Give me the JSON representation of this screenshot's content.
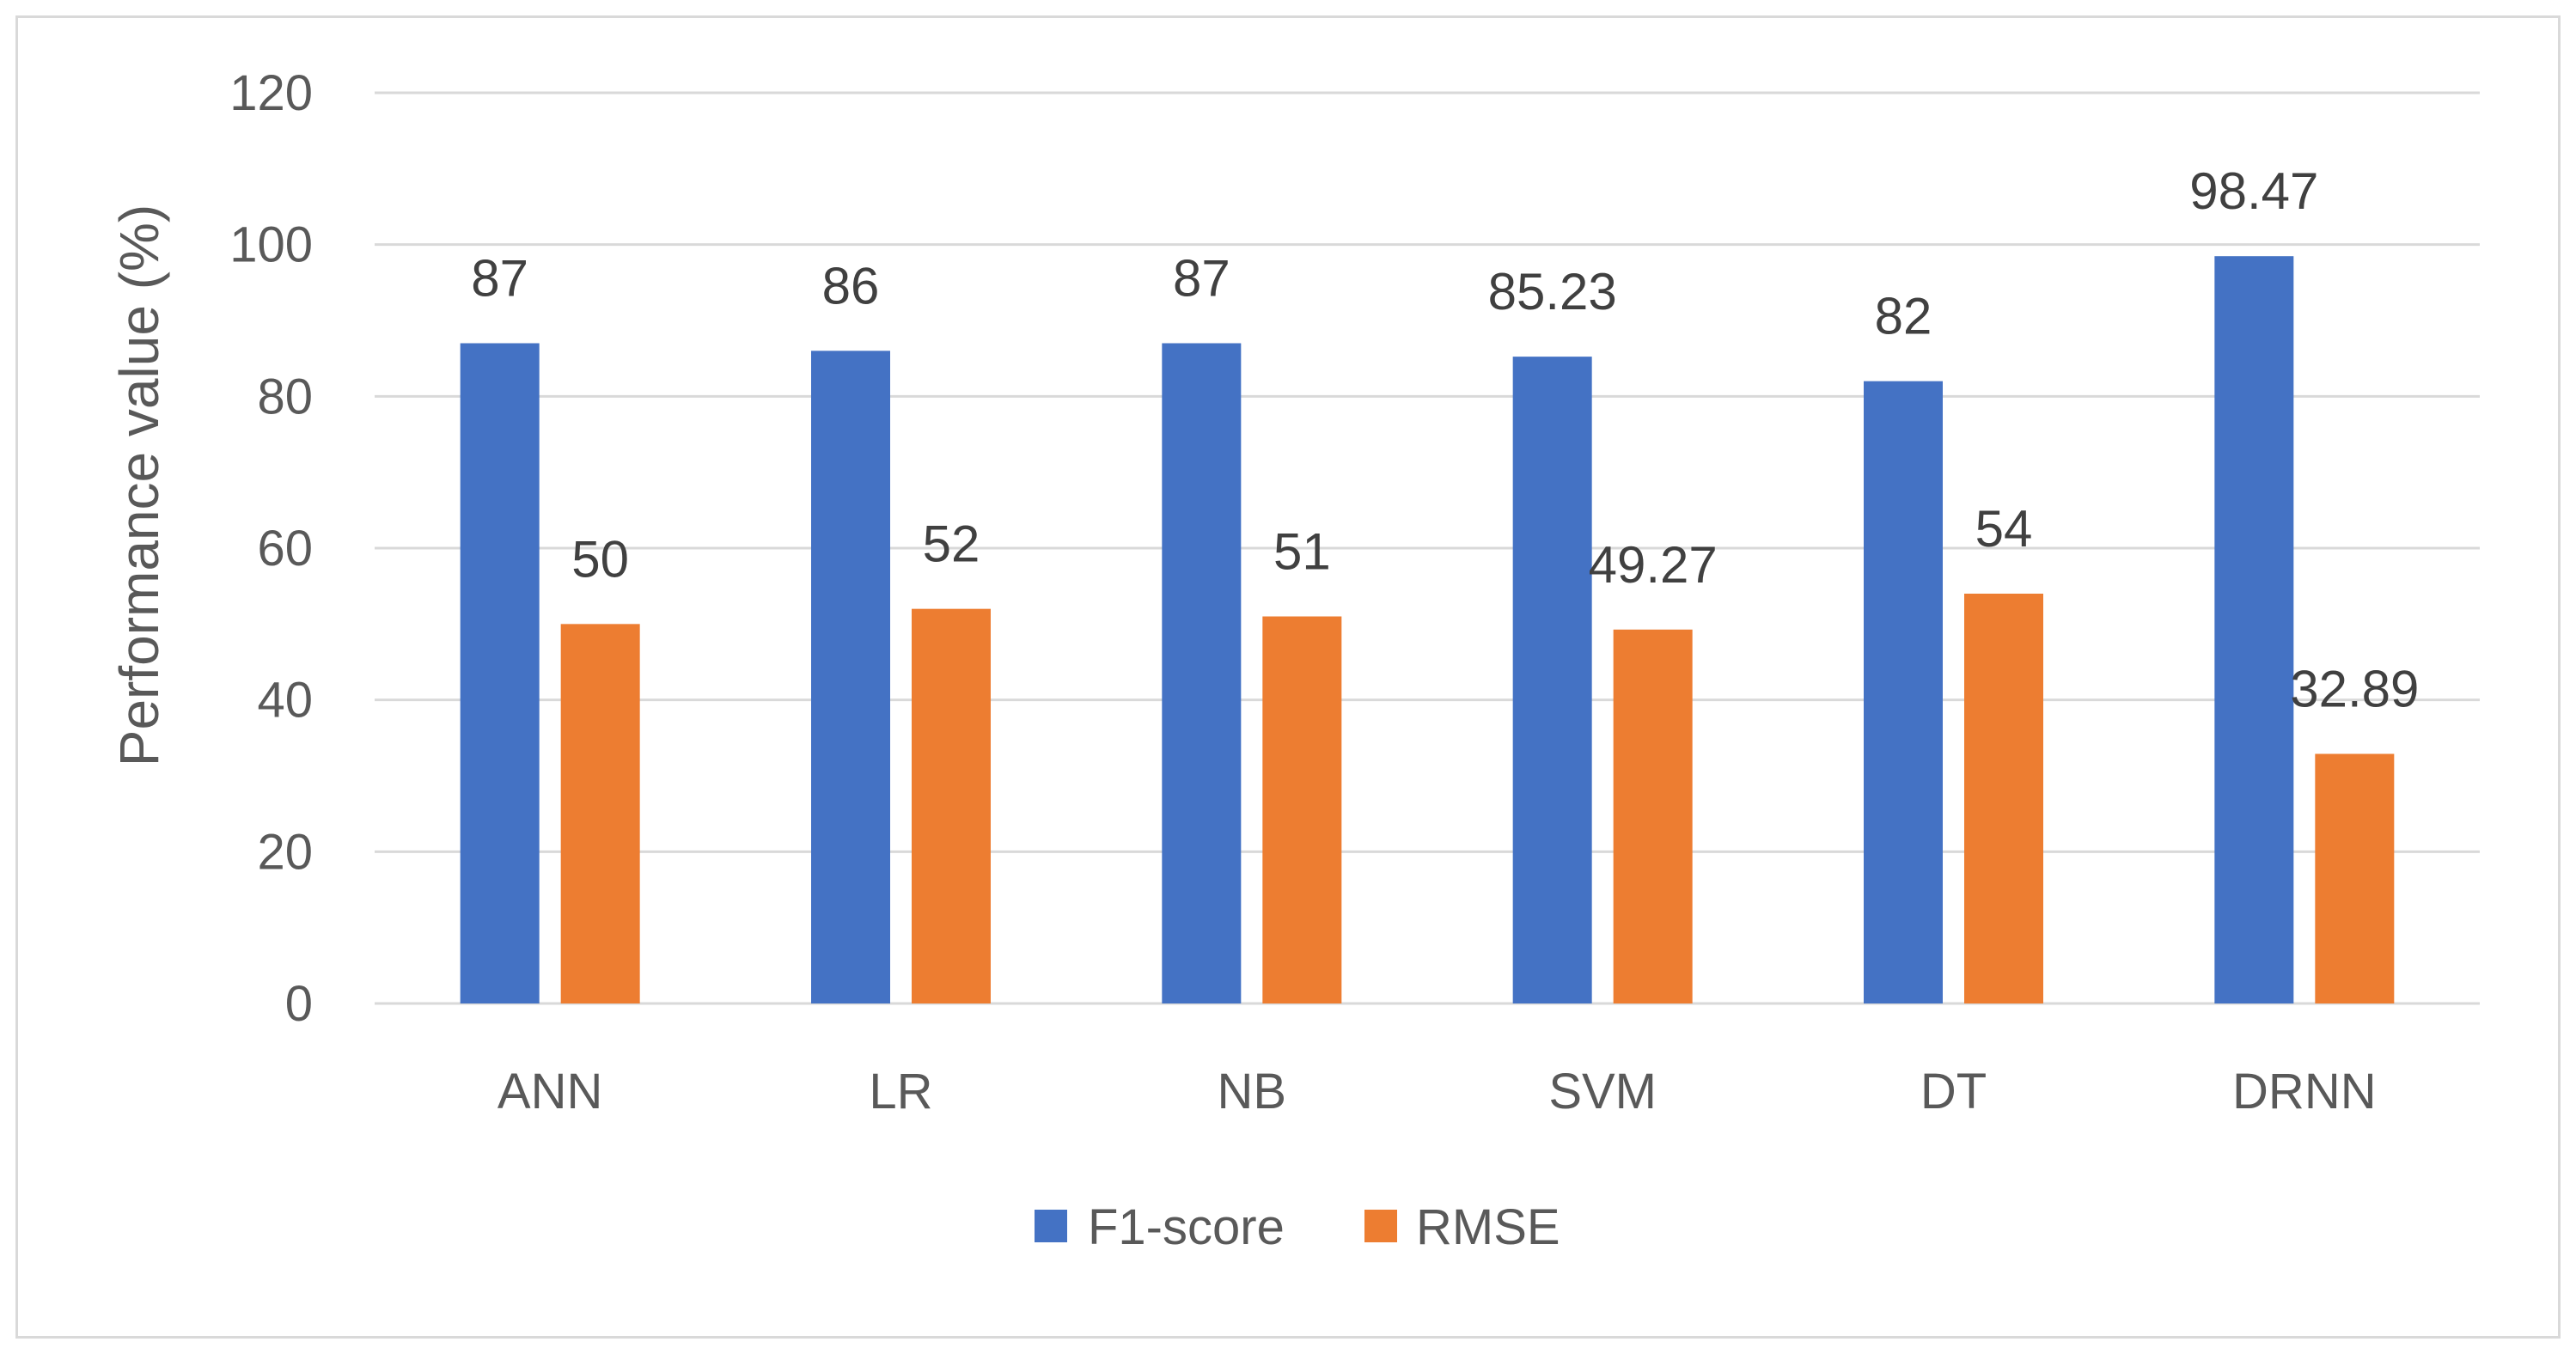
{
  "chart_data": {
    "type": "bar",
    "title": "",
    "xlabel": "",
    "ylabel": "Performance value (%)",
    "ylim": [
      0,
      120
    ],
    "yticks": [
      0,
      20,
      40,
      60,
      80,
      100,
      120
    ],
    "grid": true,
    "legend_position": "bottom",
    "categories": [
      "ANN",
      "LR",
      "NB",
      "SVM",
      "DT",
      "DRNN"
    ],
    "series": [
      {
        "name": "F1-score",
        "color": "#4472c4",
        "values": [
          87,
          86,
          87,
          85.23,
          82,
          98.47
        ],
        "labels": [
          "87",
          "86",
          "87",
          "85.23",
          "82",
          "98.47"
        ]
      },
      {
        "name": "RMSE",
        "color": "#ed7d31",
        "values": [
          50,
          52,
          51,
          49.27,
          54,
          32.89
        ],
        "labels": [
          "50",
          "52",
          "51",
          "49.27",
          "54",
          "32.89"
        ]
      }
    ]
  }
}
